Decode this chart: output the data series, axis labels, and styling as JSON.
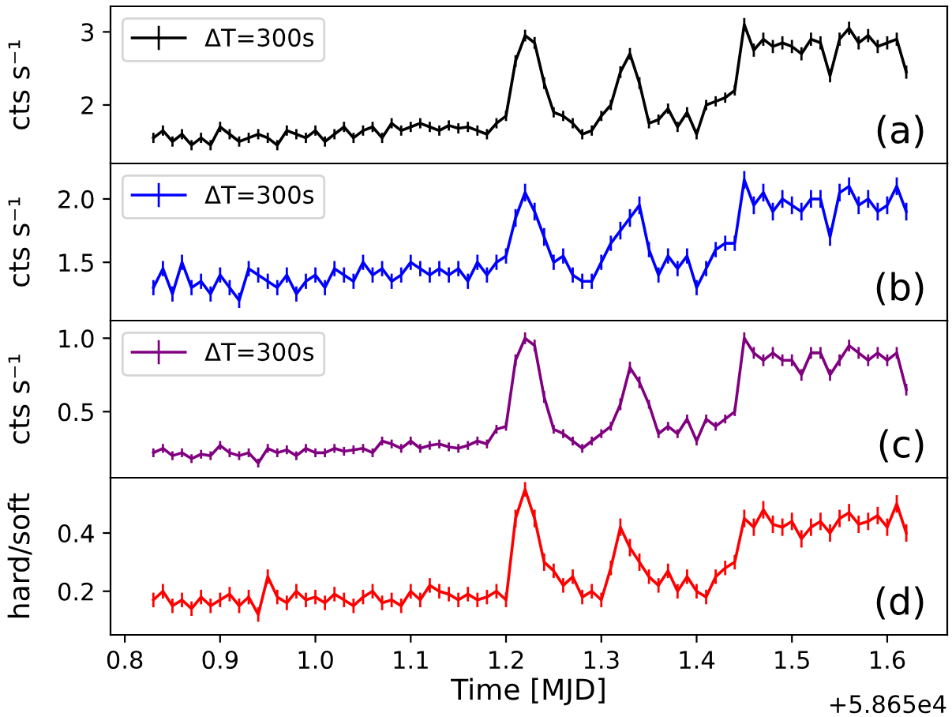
{
  "chart_data": [
    {
      "type": "line",
      "ylabel": "cts s⁻¹",
      "annotations": [
        "(a)"
      ],
      "legend": "top left",
      "tick_labels": "y",
      "xlim": [
        0.785,
        1.663
      ],
      "ylim": [
        1.2,
        3.35
      ],
      "yticks": [
        2,
        3
      ],
      "x": [
        0.83,
        0.84,
        0.85,
        0.86,
        0.87,
        0.88,
        0.89,
        0.9,
        0.91,
        0.92,
        0.93,
        0.94,
        0.95,
        0.96,
        0.97,
        0.98,
        0.99,
        1.0,
        1.01,
        1.02,
        1.03,
        1.04,
        1.05,
        1.06,
        1.07,
        1.08,
        1.09,
        1.1,
        1.11,
        1.12,
        1.13,
        1.14,
        1.15,
        1.16,
        1.17,
        1.18,
        1.19,
        1.2,
        1.21,
        1.22,
        1.23,
        1.24,
        1.25,
        1.26,
        1.27,
        1.28,
        1.29,
        1.3,
        1.31,
        1.32,
        1.33,
        1.34,
        1.35,
        1.36,
        1.37,
        1.38,
        1.39,
        1.4,
        1.41,
        1.42,
        1.43,
        1.44,
        1.45,
        1.46,
        1.47,
        1.48,
        1.49,
        1.5,
        1.51,
        1.52,
        1.53,
        1.54,
        1.55,
        1.56,
        1.57,
        1.58,
        1.59,
        1.6,
        1.61,
        1.62
      ],
      "series": [
        {
          "name": "ΔT=300s",
          "color": "#000000",
          "values": [
            1.55,
            1.65,
            1.5,
            1.6,
            1.45,
            1.55,
            1.45,
            1.7,
            1.6,
            1.5,
            1.55,
            1.6,
            1.55,
            1.45,
            1.65,
            1.6,
            1.55,
            1.65,
            1.5,
            1.6,
            1.7,
            1.55,
            1.65,
            1.7,
            1.55,
            1.75,
            1.65,
            1.7,
            1.75,
            1.7,
            1.65,
            1.72,
            1.68,
            1.7,
            1.65,
            1.6,
            1.75,
            1.85,
            2.6,
            2.95,
            2.85,
            2.3,
            1.9,
            1.85,
            1.75,
            1.6,
            1.65,
            1.85,
            2.0,
            2.45,
            2.7,
            2.3,
            1.75,
            1.8,
            1.95,
            1.7,
            1.9,
            1.6,
            2.0,
            2.05,
            2.1,
            2.2,
            3.1,
            2.75,
            2.9,
            2.8,
            2.85,
            2.8,
            2.7,
            2.9,
            2.85,
            2.4,
            2.9,
            3.05,
            2.85,
            2.95,
            2.8,
            2.85,
            2.9,
            2.45
          ],
          "errors": [
            0.07,
            0.07,
            0.07,
            0.07,
            0.07,
            0.07,
            0.07,
            0.07,
            0.07,
            0.07,
            0.07,
            0.07,
            0.07,
            0.07,
            0.07,
            0.07,
            0.07,
            0.07,
            0.07,
            0.07,
            0.07,
            0.07,
            0.07,
            0.07,
            0.07,
            0.07,
            0.07,
            0.07,
            0.07,
            0.07,
            0.07,
            0.07,
            0.07,
            0.07,
            0.07,
            0.07,
            0.07,
            0.07,
            0.08,
            0.08,
            0.08,
            0.08,
            0.07,
            0.07,
            0.07,
            0.07,
            0.07,
            0.07,
            0.07,
            0.08,
            0.08,
            0.08,
            0.07,
            0.07,
            0.07,
            0.07,
            0.07,
            0.07,
            0.07,
            0.07,
            0.07,
            0.07,
            0.09,
            0.09,
            0.09,
            0.09,
            0.09,
            0.09,
            0.09,
            0.09,
            0.09,
            0.09,
            0.09,
            0.09,
            0.09,
            0.09,
            0.09,
            0.09,
            0.09,
            0.09
          ]
        }
      ]
    },
    {
      "type": "line",
      "ylabel": "cts s⁻¹",
      "annotations": [
        "(b)"
      ],
      "legend": "top left",
      "tick_labels": "y",
      "xlim": [
        0.785,
        1.663
      ],
      "ylim": [
        1.04,
        2.28
      ],
      "yticks": [
        1.5,
        {
          "value": 2,
          "label": "2.0"
        }
      ],
      "x": [
        0.83,
        0.84,
        0.85,
        0.86,
        0.87,
        0.88,
        0.89,
        0.9,
        0.91,
        0.92,
        0.93,
        0.94,
        0.95,
        0.96,
        0.97,
        0.98,
        0.99,
        1.0,
        1.01,
        1.02,
        1.03,
        1.04,
        1.05,
        1.06,
        1.07,
        1.08,
        1.09,
        1.1,
        1.11,
        1.12,
        1.13,
        1.14,
        1.15,
        1.16,
        1.17,
        1.18,
        1.19,
        1.2,
        1.21,
        1.22,
        1.23,
        1.24,
        1.25,
        1.26,
        1.27,
        1.28,
        1.29,
        1.3,
        1.31,
        1.32,
        1.33,
        1.34,
        1.35,
        1.36,
        1.37,
        1.38,
        1.39,
        1.4,
        1.41,
        1.42,
        1.43,
        1.44,
        1.45,
        1.46,
        1.47,
        1.48,
        1.49,
        1.5,
        1.51,
        1.52,
        1.53,
        1.54,
        1.55,
        1.56,
        1.57,
        1.58,
        1.59,
        1.6,
        1.61,
        1.62
      ],
      "series": [
        {
          "name": "ΔT=300s",
          "color": "#0000ff",
          "values": [
            1.3,
            1.45,
            1.25,
            1.5,
            1.3,
            1.35,
            1.25,
            1.4,
            1.3,
            1.2,
            1.45,
            1.4,
            1.35,
            1.3,
            1.4,
            1.25,
            1.35,
            1.4,
            1.3,
            1.45,
            1.4,
            1.35,
            1.5,
            1.4,
            1.45,
            1.35,
            1.4,
            1.5,
            1.45,
            1.4,
            1.45,
            1.4,
            1.45,
            1.35,
            1.5,
            1.4,
            1.5,
            1.55,
            1.85,
            2.05,
            1.9,
            1.7,
            1.5,
            1.55,
            1.4,
            1.35,
            1.35,
            1.5,
            1.65,
            1.75,
            1.85,
            1.95,
            1.6,
            1.4,
            1.55,
            1.45,
            1.55,
            1.3,
            1.45,
            1.6,
            1.65,
            1.65,
            2.15,
            1.95,
            2.05,
            1.9,
            2.0,
            1.95,
            1.9,
            2.0,
            2.0,
            1.7,
            2.05,
            2.1,
            1.95,
            2.0,
            1.9,
            1.95,
            2.1,
            1.9
          ],
          "errors": [
            0.06,
            0.06,
            0.06,
            0.06,
            0.06,
            0.06,
            0.06,
            0.06,
            0.06,
            0.06,
            0.06,
            0.06,
            0.06,
            0.06,
            0.06,
            0.06,
            0.06,
            0.06,
            0.06,
            0.06,
            0.06,
            0.06,
            0.06,
            0.06,
            0.06,
            0.06,
            0.06,
            0.06,
            0.06,
            0.06,
            0.06,
            0.06,
            0.06,
            0.06,
            0.06,
            0.06,
            0.06,
            0.06,
            0.07,
            0.07,
            0.07,
            0.07,
            0.06,
            0.06,
            0.06,
            0.06,
            0.06,
            0.06,
            0.06,
            0.07,
            0.07,
            0.07,
            0.06,
            0.06,
            0.06,
            0.06,
            0.06,
            0.06,
            0.06,
            0.06,
            0.06,
            0.06,
            0.07,
            0.07,
            0.07,
            0.07,
            0.07,
            0.07,
            0.07,
            0.07,
            0.07,
            0.07,
            0.07,
            0.07,
            0.07,
            0.07,
            0.07,
            0.07,
            0.07,
            0.07
          ]
        }
      ]
    },
    {
      "type": "line",
      "ylabel": "cts s⁻¹",
      "annotations": [
        "(c)"
      ],
      "legend": "top left",
      "tick_labels": "y",
      "xlim": [
        0.785,
        1.663
      ],
      "ylim": [
        0.05,
        1.12
      ],
      "yticks": [
        0.5,
        {
          "value": 1,
          "label": "1.0"
        }
      ],
      "x": [
        0.83,
        0.84,
        0.85,
        0.86,
        0.87,
        0.88,
        0.89,
        0.9,
        0.91,
        0.92,
        0.93,
        0.94,
        0.95,
        0.96,
        0.97,
        0.98,
        0.99,
        1.0,
        1.01,
        1.02,
        1.03,
        1.04,
        1.05,
        1.06,
        1.07,
        1.08,
        1.09,
        1.1,
        1.11,
        1.12,
        1.13,
        1.14,
        1.15,
        1.16,
        1.17,
        1.18,
        1.19,
        1.2,
        1.21,
        1.22,
        1.23,
        1.24,
        1.25,
        1.26,
        1.27,
        1.28,
        1.29,
        1.3,
        1.31,
        1.32,
        1.33,
        1.34,
        1.35,
        1.36,
        1.37,
        1.38,
        1.39,
        1.4,
        1.41,
        1.42,
        1.43,
        1.44,
        1.45,
        1.46,
        1.47,
        1.48,
        1.49,
        1.5,
        1.51,
        1.52,
        1.53,
        1.54,
        1.55,
        1.56,
        1.57,
        1.58,
        1.59,
        1.6,
        1.61,
        1.62
      ],
      "series": [
        {
          "name": "ΔT=300s",
          "color": "#800080",
          "values": [
            0.22,
            0.25,
            0.2,
            0.22,
            0.18,
            0.21,
            0.2,
            0.27,
            0.22,
            0.2,
            0.22,
            0.15,
            0.25,
            0.22,
            0.24,
            0.2,
            0.25,
            0.22,
            0.22,
            0.25,
            0.23,
            0.24,
            0.25,
            0.22,
            0.3,
            0.28,
            0.25,
            0.3,
            0.25,
            0.27,
            0.28,
            0.26,
            0.25,
            0.27,
            0.3,
            0.28,
            0.38,
            0.4,
            0.85,
            1.0,
            0.95,
            0.6,
            0.38,
            0.35,
            0.3,
            0.25,
            0.3,
            0.35,
            0.4,
            0.55,
            0.8,
            0.7,
            0.55,
            0.35,
            0.4,
            0.35,
            0.45,
            0.3,
            0.45,
            0.4,
            0.45,
            0.5,
            1.0,
            0.9,
            0.85,
            0.9,
            0.85,
            0.85,
            0.75,
            0.9,
            0.9,
            0.75,
            0.85,
            0.95,
            0.9,
            0.85,
            0.9,
            0.85,
            0.9,
            0.65
          ],
          "errors": [
            0.03,
            0.03,
            0.03,
            0.03,
            0.03,
            0.03,
            0.03,
            0.03,
            0.03,
            0.03,
            0.03,
            0.03,
            0.03,
            0.03,
            0.03,
            0.03,
            0.03,
            0.03,
            0.03,
            0.03,
            0.03,
            0.03,
            0.03,
            0.03,
            0.03,
            0.03,
            0.03,
            0.03,
            0.03,
            0.03,
            0.03,
            0.03,
            0.03,
            0.03,
            0.03,
            0.03,
            0.03,
            0.03,
            0.04,
            0.04,
            0.04,
            0.04,
            0.03,
            0.03,
            0.03,
            0.03,
            0.03,
            0.03,
            0.03,
            0.04,
            0.04,
            0.04,
            0.03,
            0.03,
            0.03,
            0.03,
            0.03,
            0.03,
            0.03,
            0.03,
            0.03,
            0.03,
            0.04,
            0.04,
            0.04,
            0.04,
            0.04,
            0.04,
            0.04,
            0.04,
            0.04,
            0.04,
            0.04,
            0.04,
            0.04,
            0.04,
            0.04,
            0.04,
            0.04,
            0.04
          ]
        }
      ]
    },
    {
      "type": "line",
      "xlabel": "Time [MJD]",
      "ylabel": "hard/soft",
      "annotations": [
        "(d)",
        "+5.865e4"
      ],
      "xlim": [
        0.785,
        1.663
      ],
      "ylim": [
        0.05,
        0.59
      ],
      "yticks": [
        0.2,
        0.4
      ],
      "xticks": [
        0.8,
        0.9,
        {
          "value": 1,
          "label": "1.0"
        },
        1.1,
        1.2,
        1.3,
        1.4,
        1.5,
        1.6
      ],
      "x": [
        0.83,
        0.84,
        0.85,
        0.86,
        0.87,
        0.88,
        0.89,
        0.9,
        0.91,
        0.92,
        0.93,
        0.94,
        0.95,
        0.96,
        0.97,
        0.98,
        0.99,
        1.0,
        1.01,
        1.02,
        1.03,
        1.04,
        1.05,
        1.06,
        1.07,
        1.08,
        1.09,
        1.1,
        1.11,
        1.12,
        1.13,
        1.14,
        1.15,
        1.16,
        1.17,
        1.18,
        1.19,
        1.2,
        1.21,
        1.22,
        1.23,
        1.24,
        1.25,
        1.26,
        1.27,
        1.28,
        1.29,
        1.3,
        1.31,
        1.32,
        1.33,
        1.34,
        1.35,
        1.36,
        1.37,
        1.38,
        1.39,
        1.4,
        1.41,
        1.42,
        1.43,
        1.44,
        1.45,
        1.46,
        1.47,
        1.48,
        1.49,
        1.5,
        1.51,
        1.52,
        1.53,
        1.54,
        1.55,
        1.56,
        1.57,
        1.58,
        1.59,
        1.6,
        1.61,
        1.62
      ],
      "series": [
        {
          "color": "#ff0000",
          "values": [
            0.17,
            0.2,
            0.15,
            0.17,
            0.14,
            0.18,
            0.15,
            0.17,
            0.19,
            0.15,
            0.18,
            0.12,
            0.25,
            0.18,
            0.16,
            0.2,
            0.17,
            0.18,
            0.16,
            0.19,
            0.17,
            0.15,
            0.18,
            0.2,
            0.16,
            0.17,
            0.15,
            0.2,
            0.17,
            0.22,
            0.2,
            0.19,
            0.17,
            0.19,
            0.17,
            0.18,
            0.2,
            0.17,
            0.45,
            0.55,
            0.45,
            0.3,
            0.27,
            0.22,
            0.25,
            0.18,
            0.2,
            0.17,
            0.28,
            0.42,
            0.35,
            0.3,
            0.25,
            0.22,
            0.27,
            0.2,
            0.25,
            0.2,
            0.18,
            0.25,
            0.28,
            0.3,
            0.45,
            0.42,
            0.48,
            0.43,
            0.42,
            0.44,
            0.38,
            0.42,
            0.44,
            0.4,
            0.45,
            0.47,
            0.43,
            0.44,
            0.46,
            0.42,
            0.5,
            0.4
          ],
          "errors": [
            0.025,
            0.025,
            0.025,
            0.025,
            0.025,
            0.025,
            0.025,
            0.025,
            0.025,
            0.025,
            0.025,
            0.025,
            0.025,
            0.025,
            0.025,
            0.025,
            0.025,
            0.025,
            0.025,
            0.025,
            0.025,
            0.025,
            0.025,
            0.025,
            0.025,
            0.025,
            0.025,
            0.025,
            0.025,
            0.025,
            0.025,
            0.025,
            0.025,
            0.025,
            0.025,
            0.025,
            0.025,
            0.025,
            0.03,
            0.025,
            0.03,
            0.03,
            0.025,
            0.025,
            0.025,
            0.025,
            0.025,
            0.025,
            0.025,
            0.03,
            0.03,
            0.03,
            0.025,
            0.025,
            0.025,
            0.025,
            0.025,
            0.025,
            0.025,
            0.025,
            0.025,
            0.025,
            0.03,
            0.03,
            0.03,
            0.03,
            0.03,
            0.03,
            0.03,
            0.03,
            0.03,
            0.03,
            0.03,
            0.03,
            0.03,
            0.03,
            0.03,
            0.03,
            0.03,
            0.03
          ]
        }
      ]
    }
  ]
}
